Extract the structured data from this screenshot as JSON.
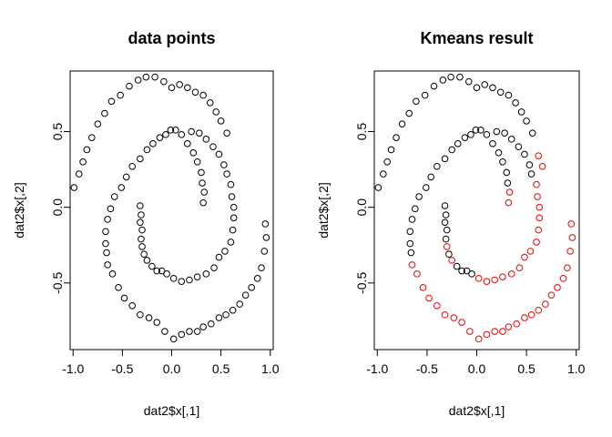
{
  "chart_data": [
    {
      "type": "scatter",
      "title": "data points",
      "xlabel": "dat2$x[,1]",
      "ylabel": "dat2$x[,2]",
      "xlim": [
        -1.03,
        1.03
      ],
      "ylim": [
        -0.94,
        0.9
      ],
      "xticks": [
        -1.0,
        -0.5,
        0.0,
        0.5,
        1.0
      ],
      "xtick_labels": [
        "-1.0",
        "-0.5",
        "0.0",
        "0.5",
        "1.0"
      ],
      "yticks": [
        -0.5,
        0.0,
        0.5
      ],
      "ytick_labels": [
        "-0.5",
        "0.0",
        "0.5"
      ],
      "grid": false,
      "marker": "open-circle",
      "series": [
        {
          "color": "#000000",
          "points": [
            [
              -0.32,
              0.01
            ],
            [
              -0.31,
              -0.05
            ],
            [
              -0.32,
              -0.1
            ],
            [
              -0.3,
              -0.15
            ],
            [
              -0.31,
              -0.21
            ],
            [
              -0.3,
              -0.26
            ],
            [
              -0.28,
              -0.31
            ],
            [
              -0.25,
              -0.35
            ],
            [
              -0.2,
              -0.39
            ],
            [
              -0.15,
              -0.42
            ],
            [
              -0.1,
              -0.42
            ],
            [
              -0.05,
              -0.44
            ],
            [
              0.02,
              -0.47
            ],
            [
              0.1,
              -0.49
            ],
            [
              0.18,
              -0.48
            ],
            [
              0.26,
              -0.46
            ],
            [
              0.35,
              -0.44
            ],
            [
              0.43,
              -0.4
            ],
            [
              0.48,
              -0.33
            ],
            [
              0.54,
              -0.29
            ],
            [
              0.6,
              -0.23
            ],
            [
              0.62,
              -0.15
            ],
            [
              0.63,
              -0.07
            ],
            [
              0.63,
              0.0
            ],
            [
              0.61,
              0.07
            ],
            [
              0.6,
              0.15
            ],
            [
              0.56,
              0.22
            ],
            [
              0.53,
              0.28
            ],
            [
              0.48,
              0.35
            ],
            [
              0.42,
              0.4
            ],
            [
              0.35,
              0.45
            ],
            [
              0.28,
              0.49
            ],
            [
              0.2,
              0.5
            ],
            [
              -0.01,
              0.51
            ],
            [
              0.04,
              0.51
            ],
            [
              0.1,
              0.48
            ],
            [
              0.16,
              0.42
            ],
            [
              0.22,
              0.36
            ],
            [
              0.26,
              0.3
            ],
            [
              0.3,
              0.23
            ],
            [
              0.31,
              0.16
            ],
            [
              0.33,
              0.1
            ],
            [
              0.32,
              0.03
            ],
            [
              -0.06,
              0.48
            ],
            [
              -0.12,
              0.46
            ],
            [
              -0.19,
              0.42
            ],
            [
              -0.25,
              0.38
            ],
            [
              -0.32,
              0.32
            ],
            [
              -0.4,
              0.27
            ],
            [
              -0.46,
              0.2
            ],
            [
              -0.51,
              0.13
            ],
            [
              -0.58,
              0.07
            ],
            [
              -0.62,
              -0.01
            ],
            [
              -0.65,
              -0.08
            ],
            [
              -0.67,
              -0.16
            ],
            [
              -0.67,
              -0.24
            ],
            [
              -0.66,
              -0.3
            ],
            [
              -0.65,
              -0.38
            ],
            [
              -0.6,
              -0.44
            ],
            [
              -0.54,
              -0.53
            ],
            [
              -0.48,
              -0.6
            ],
            [
              -0.4,
              -0.65
            ],
            [
              -0.32,
              -0.71
            ],
            [
              -0.23,
              -0.73
            ],
            [
              -0.15,
              -0.76
            ],
            [
              -0.07,
              -0.82
            ],
            [
              0.02,
              -0.87
            ],
            [
              0.1,
              -0.84
            ],
            [
              0.18,
              -0.82
            ],
            [
              0.26,
              -0.82
            ],
            [
              0.32,
              -0.79
            ],
            [
              0.4,
              -0.77
            ],
            [
              0.48,
              -0.73
            ],
            [
              0.55,
              -0.71
            ],
            [
              0.62,
              -0.68
            ],
            [
              0.69,
              -0.64
            ],
            [
              0.75,
              -0.58
            ],
            [
              0.81,
              -0.53
            ],
            [
              0.87,
              -0.47
            ],
            [
              0.91,
              -0.4
            ],
            [
              0.94,
              -0.29
            ],
            [
              0.96,
              -0.2
            ],
            [
              0.95,
              -0.11
            ],
            [
              -0.99,
              0.13
            ],
            [
              -0.94,
              0.22
            ],
            [
              -0.9,
              0.3
            ],
            [
              -0.86,
              0.38
            ],
            [
              -0.81,
              0.46
            ],
            [
              -0.75,
              0.55
            ],
            [
              -0.68,
              0.62
            ],
            [
              -0.61,
              0.7
            ],
            [
              -0.52,
              0.74
            ],
            [
              -0.43,
              0.8
            ],
            [
              -0.34,
              0.84
            ],
            [
              -0.26,
              0.86
            ],
            [
              -0.17,
              0.86
            ],
            [
              -0.08,
              0.83
            ],
            [
              0.0,
              0.79
            ],
            [
              0.08,
              0.81
            ],
            [
              0.16,
              0.79
            ],
            [
              0.24,
              0.76
            ],
            [
              0.32,
              0.74
            ],
            [
              0.39,
              0.69
            ],
            [
              0.45,
              0.63
            ],
            [
              0.5,
              0.57
            ],
            [
              0.56,
              0.49
            ]
          ]
        }
      ]
    },
    {
      "type": "scatter",
      "title": "Kmeans result",
      "xlabel": "dat2$x[,1]",
      "ylabel": "dat2$x[,2]",
      "xlim": [
        -1.03,
        1.03
      ],
      "ylim": [
        -0.94,
        0.9
      ],
      "xticks": [
        -1.0,
        -0.5,
        0.0,
        0.5,
        1.0
      ],
      "xtick_labels": [
        "-1.0",
        "-0.5",
        "0.0",
        "0.5",
        "1.0"
      ],
      "yticks": [
        -0.5,
        0.0,
        0.5
      ],
      "ytick_labels": [
        "-0.5",
        "0.0",
        "0.5"
      ],
      "grid": false,
      "marker": "open-circle",
      "series": [
        {
          "color": "#000000",
          "points": [
            [
              -0.32,
              0.01
            ],
            [
              -0.31,
              -0.05
            ],
            [
              -0.32,
              -0.1
            ],
            [
              -0.3,
              -0.15
            ],
            [
              -0.31,
              -0.21
            ],
            [
              -0.28,
              -0.31
            ],
            [
              -0.2,
              -0.39
            ],
            [
              -0.15,
              -0.42
            ],
            [
              -0.1,
              -0.42
            ],
            [
              -0.05,
              -0.44
            ],
            [
              0.55,
              0.22
            ],
            [
              0.53,
              0.28
            ],
            [
              0.48,
              0.35
            ],
            [
              0.42,
              0.4
            ],
            [
              0.35,
              0.45
            ],
            [
              0.28,
              0.49
            ],
            [
              0.2,
              0.5
            ],
            [
              -0.01,
              0.51
            ],
            [
              0.04,
              0.51
            ],
            [
              0.1,
              0.48
            ],
            [
              0.16,
              0.42
            ],
            [
              0.22,
              0.36
            ],
            [
              0.26,
              0.3
            ],
            [
              0.3,
              0.23
            ],
            [
              0.31,
              0.16
            ],
            [
              -0.06,
              0.48
            ],
            [
              -0.12,
              0.46
            ],
            [
              -0.19,
              0.42
            ],
            [
              -0.25,
              0.38
            ],
            [
              -0.32,
              0.32
            ],
            [
              -0.4,
              0.27
            ],
            [
              -0.46,
              0.2
            ],
            [
              -0.51,
              0.13
            ],
            [
              -0.58,
              0.07
            ],
            [
              -0.62,
              -0.01
            ],
            [
              -0.65,
              -0.08
            ],
            [
              -0.67,
              -0.16
            ],
            [
              -0.67,
              -0.24
            ],
            [
              -0.66,
              -0.3
            ],
            [
              -0.99,
              0.13
            ],
            [
              -0.94,
              0.22
            ],
            [
              -0.9,
              0.3
            ],
            [
              -0.86,
              0.38
            ],
            [
              -0.81,
              0.46
            ],
            [
              -0.75,
              0.55
            ],
            [
              -0.68,
              0.62
            ],
            [
              -0.61,
              0.7
            ],
            [
              -0.52,
              0.74
            ],
            [
              -0.43,
              0.8
            ],
            [
              -0.34,
              0.84
            ],
            [
              -0.26,
              0.86
            ],
            [
              -0.17,
              0.86
            ],
            [
              -0.08,
              0.83
            ],
            [
              0.0,
              0.79
            ],
            [
              0.08,
              0.81
            ],
            [
              0.16,
              0.79
            ],
            [
              0.24,
              0.76
            ],
            [
              0.32,
              0.74
            ],
            [
              0.39,
              0.69
            ],
            [
              0.45,
              0.63
            ],
            [
              0.5,
              0.57
            ],
            [
              0.56,
              0.49
            ]
          ]
        },
        {
          "color": "#ff0000",
          "points": [
            [
              -0.3,
              -0.26
            ],
            [
              -0.25,
              -0.35
            ],
            [
              0.02,
              -0.47
            ],
            [
              0.1,
              -0.49
            ],
            [
              0.18,
              -0.48
            ],
            [
              0.26,
              -0.46
            ],
            [
              0.35,
              -0.44
            ],
            [
              0.43,
              -0.4
            ],
            [
              0.48,
              -0.33
            ],
            [
              0.54,
              -0.29
            ],
            [
              0.6,
              -0.23
            ],
            [
              0.62,
              -0.15
            ],
            [
              0.63,
              -0.07
            ],
            [
              0.63,
              0.0
            ],
            [
              0.61,
              0.07
            ],
            [
              0.6,
              0.15
            ],
            [
              0.33,
              0.1
            ],
            [
              0.32,
              0.03
            ],
            [
              -0.65,
              -0.38
            ],
            [
              -0.6,
              -0.44
            ],
            [
              -0.54,
              -0.53
            ],
            [
              -0.48,
              -0.6
            ],
            [
              -0.4,
              -0.65
            ],
            [
              -0.32,
              -0.71
            ],
            [
              -0.23,
              -0.73
            ],
            [
              -0.15,
              -0.76
            ],
            [
              -0.07,
              -0.82
            ],
            [
              0.02,
              -0.87
            ],
            [
              0.1,
              -0.84
            ],
            [
              0.18,
              -0.82
            ],
            [
              0.26,
              -0.82
            ],
            [
              0.32,
              -0.79
            ],
            [
              0.4,
              -0.77
            ],
            [
              0.48,
              -0.73
            ],
            [
              0.55,
              -0.71
            ],
            [
              0.62,
              -0.68
            ],
            [
              0.69,
              -0.64
            ],
            [
              0.75,
              -0.58
            ],
            [
              0.81,
              -0.53
            ],
            [
              0.87,
              -0.47
            ],
            [
              0.91,
              -0.4
            ],
            [
              0.94,
              -0.29
            ],
            [
              0.96,
              -0.2
            ],
            [
              0.95,
              -0.11
            ],
            [
              0.62,
              0.34
            ],
            [
              0.66,
              0.27
            ]
          ]
        }
      ]
    }
  ]
}
